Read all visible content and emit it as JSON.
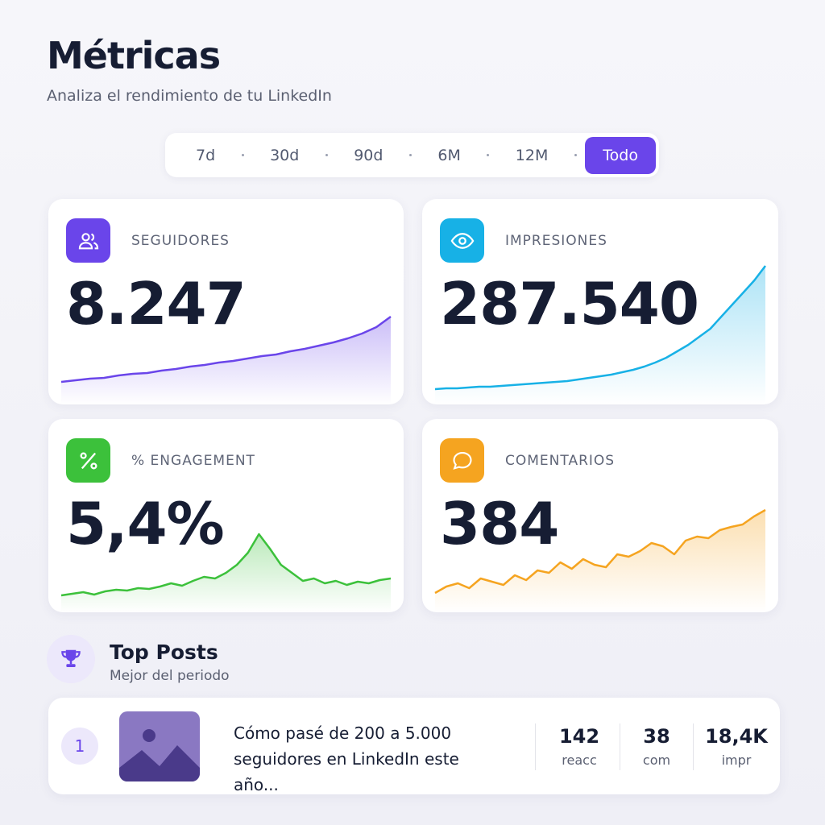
{
  "header": {
    "title": "Métricas",
    "subtitle": "Analiza el rendimiento de tu LinkedIn"
  },
  "periods": {
    "items": [
      "7d",
      "30d",
      "90d",
      "6M",
      "12M",
      "Todo"
    ],
    "selected": 5
  },
  "cards": [
    {
      "label": "SEGUIDORES",
      "value": "8.247",
      "color": "#6a45ea",
      "spark": [
        14,
        16,
        18,
        19,
        22,
        24,
        25,
        28,
        30,
        33,
        35,
        38,
        40,
        43,
        46,
        48,
        52,
        55,
        59,
        63,
        68,
        74,
        82,
        95
      ]
    },
    {
      "label": "IMPRESIONES",
      "value": "287.540",
      "color": "#17b1e6",
      "spark": [
        5,
        6,
        6,
        7,
        8,
        8,
        9,
        10,
        11,
        12,
        13,
        14,
        15,
        17,
        19,
        21,
        23,
        26,
        29,
        33,
        38,
        44,
        52,
        60,
        70,
        80,
        95,
        110,
        125,
        140,
        158
      ]
    },
    {
      "label": "% ENGAGEMENT",
      "value": "5,4%",
      "color": "#3cc13b",
      "spark": [
        7,
        9,
        11,
        8,
        12,
        14,
        13,
        16,
        15,
        18,
        22,
        19,
        25,
        30,
        28,
        35,
        45,
        60,
        83,
        65,
        45,
        35,
        25,
        28,
        22,
        25,
        20,
        24,
        22,
        26,
        28
      ]
    },
    {
      "label": "COMENTARIOS",
      "value": "384",
      "color": "#f5a420",
      "spark": [
        10,
        18,
        22,
        16,
        28,
        24,
        20,
        32,
        26,
        38,
        35,
        48,
        40,
        52,
        45,
        42,
        58,
        55,
        62,
        72,
        68,
        58,
        75,
        80,
        78,
        88,
        92,
        95,
        105,
        113
      ]
    }
  ],
  "top_posts": {
    "title": "Top Posts",
    "subtitle": "Mejor del periodo",
    "posts": [
      {
        "rank": "1",
        "title": "Cómo pasé de 200 a 5.000 seguidores en LinkedIn este año...",
        "stats": [
          {
            "value": "142",
            "label": "reacc"
          },
          {
            "value": "38",
            "label": "com"
          },
          {
            "value": "18,4K",
            "label": "impr"
          }
        ]
      }
    ]
  }
}
